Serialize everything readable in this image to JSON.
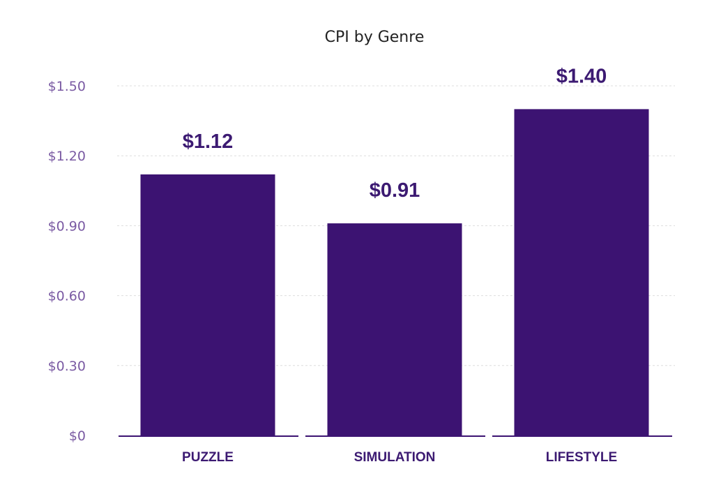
{
  "chart_data": {
    "type": "bar",
    "title": "CPI by Genre",
    "xlabel": "",
    "ylabel": "",
    "categories": [
      "PUZZLE",
      "SIMULATION",
      "LIFESTYLE"
    ],
    "values": [
      1.12,
      0.91,
      1.4
    ],
    "data_labels": [
      "$1.12",
      "$0.91",
      "$1.40"
    ],
    "ylim": [
      0,
      1.5
    ],
    "yticks": [
      0,
      0.3,
      0.6,
      0.9,
      1.2,
      1.5
    ],
    "ytick_labels": [
      "$0",
      "$0.30",
      "$0.60",
      "$0.90",
      "$1.20",
      "$1.50"
    ],
    "grid": true,
    "legend": "none",
    "bar_color": "#3c1372",
    "label_color": "#3c1a72",
    "tick_color": "#7a5aa3"
  }
}
